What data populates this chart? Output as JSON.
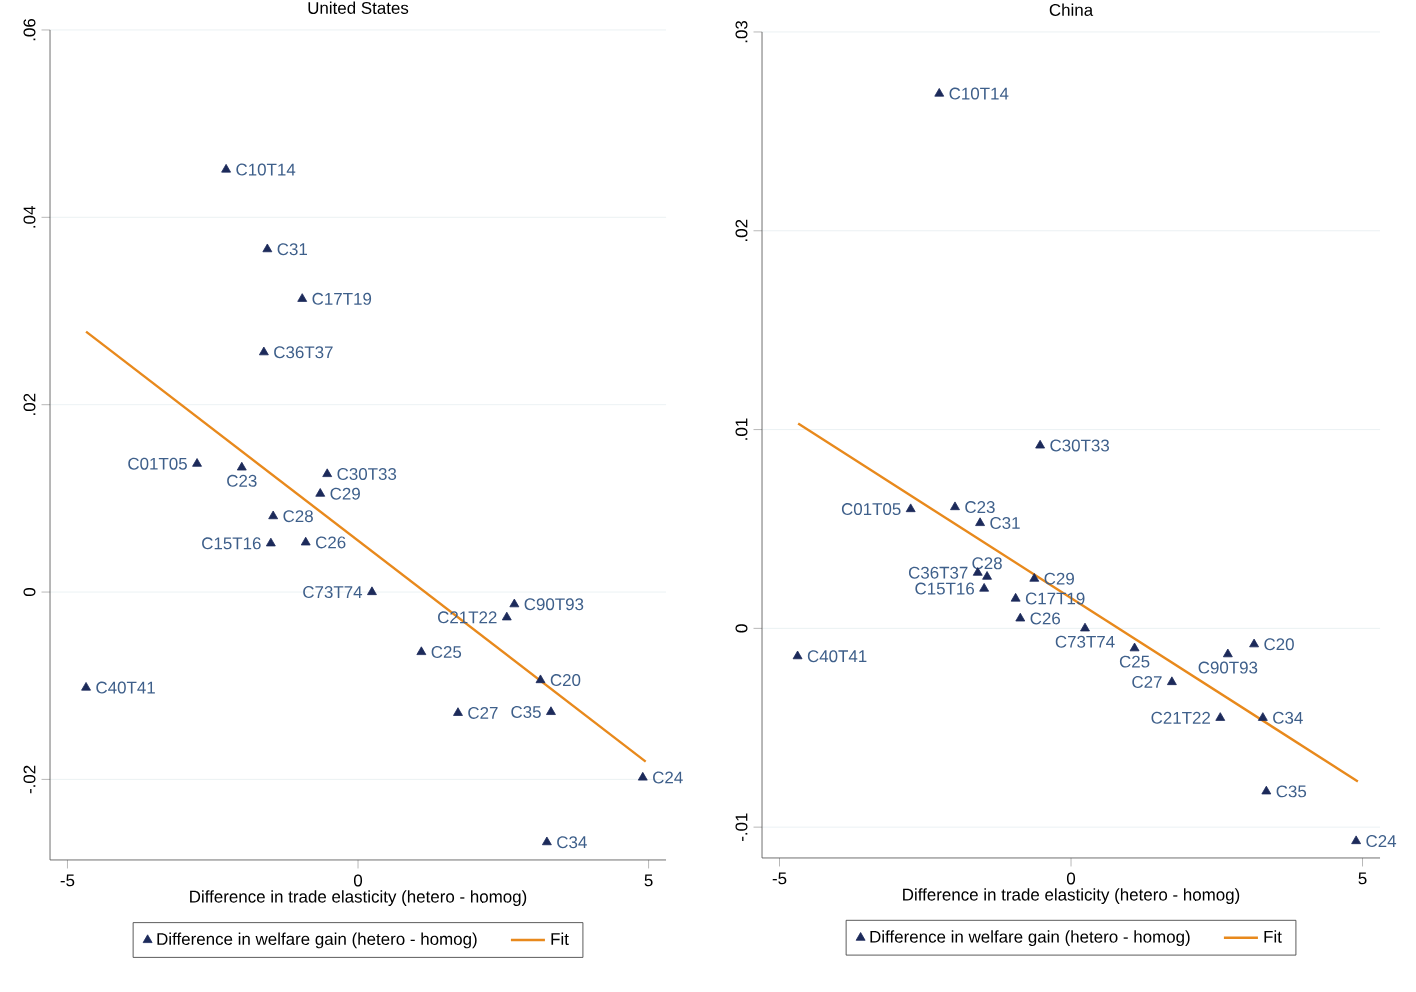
{
  "chart_data": [
    {
      "type": "scatter",
      "title": "United States",
      "xlabel": "Difference in trade elasticity (hetero - homog)",
      "xlim": [
        -5.3,
        5.3
      ],
      "xticks": [
        -5,
        0,
        5
      ],
      "ylim": [
        -0.0286,
        0.06
      ],
      "yticks": [
        {
          "value": -0.02,
          "label": "-.02"
        },
        0,
        {
          "value": 0.02,
          "label": ".02"
        },
        {
          "value": 0.04,
          "label": ".04"
        },
        {
          "value": 0.06,
          "label": ".06"
        }
      ],
      "grid": "y",
      "legend": "bottom",
      "series": [
        {
          "name": "Difference in welfare gain (hetero - homog)",
          "marker": "triangle",
          "color": "#1c2a5a",
          "x": [
            -2.27,
            -1.56,
            -0.96,
            -1.62,
            -2.77,
            -2.0,
            -0.53,
            -0.65,
            -1.46,
            -1.5,
            -0.9,
            0.24,
            2.69,
            2.56,
            1.09,
            3.14,
            1.72,
            3.32,
            4.9,
            3.25,
            -4.68
          ],
          "values": [
            0.0451,
            0.0366,
            0.0313,
            0.0256,
            0.0137,
            0.0133,
            0.0126,
            0.0105,
            0.0081,
            0.0052,
            0.0053,
            0.0,
            -0.0013,
            -0.0027,
            -0.0064,
            -0.0094,
            -0.0129,
            -0.0128,
            -0.0198,
            -0.0267,
            -0.0102
          ]
        },
        {
          "name": "Fit",
          "type": "line",
          "marker": "none",
          "color": "#e8891c",
          "x": [
            -4.68,
            4.95
          ],
          "values": [
            0.0278,
            -0.0181
          ]
        }
      ],
      "annotations": [
        {
          "text": "C10T14",
          "x": -2.27,
          "y": 0.0451
        },
        {
          "text": "C31",
          "x": -1.56,
          "y": 0.0366
        },
        {
          "text": "C17T19",
          "x": -0.96,
          "y": 0.0313
        },
        {
          "text": "C36T37",
          "x": -1.62,
          "y": 0.0256
        },
        {
          "text": "C01T05",
          "x": -2.77,
          "y": 0.0137
        },
        {
          "text": "C23",
          "x": -2.0,
          "y": 0.0133
        },
        {
          "text": "C30T33",
          "x": -0.53,
          "y": 0.0126
        },
        {
          "text": "C29",
          "x": -0.65,
          "y": 0.0105
        },
        {
          "text": "C28",
          "x": -1.46,
          "y": 0.0081
        },
        {
          "text": "C15T16",
          "x": -1.5,
          "y": 0.0052
        },
        {
          "text": "C26",
          "x": -0.9,
          "y": 0.0053
        },
        {
          "text": "C73T74",
          "x": 0.24,
          "y": 0.0
        },
        {
          "text": "C90T93",
          "x": 2.69,
          "y": -0.0013
        },
        {
          "text": "C21T22",
          "x": 2.56,
          "y": -0.0027
        },
        {
          "text": "C25",
          "x": 1.09,
          "y": -0.0064
        },
        {
          "text": "C20",
          "x": 3.14,
          "y": -0.0094
        },
        {
          "text": "C27",
          "x": 1.72,
          "y": -0.0129
        },
        {
          "text": "C35",
          "x": 3.32,
          "y": -0.0128
        },
        {
          "text": "C24",
          "x": 4.9,
          "y": -0.0198
        },
        {
          "text": "C34",
          "x": 3.25,
          "y": -0.0267
        },
        {
          "text": "C40T41",
          "x": -4.68,
          "y": -0.0102
        }
      ]
    },
    {
      "type": "scatter",
      "title": "China",
      "xlabel": "Difference in trade elasticity (hetero - homog)",
      "xlim": [
        -5.3,
        5.3
      ],
      "xticks": [
        -5,
        0,
        5
      ],
      "ylim": [
        -0.01155,
        0.03
      ],
      "yticks": [
        {
          "value": -0.01,
          "label": "-.01"
        },
        0,
        {
          "value": 0.01,
          "label": ".01"
        },
        {
          "value": 0.02,
          "label": ".02"
        },
        {
          "value": 0.03,
          "label": ".03"
        }
      ],
      "grid": "y",
      "legend": "bottom",
      "series": [
        {
          "name": "Difference in welfare gain (hetero - homog)",
          "marker": "triangle",
          "color": "#1c2a5a",
          "x": [
            -2.26,
            -0.53,
            -2.75,
            -1.99,
            -1.56,
            -1.6,
            -1.44,
            -0.63,
            -1.49,
            -0.95,
            -0.87,
            0.24,
            1.09,
            3.14,
            2.69,
            1.73,
            2.56,
            3.29,
            3.35,
            4.89,
            -4.69
          ],
          "values": [
            0.0269,
            0.0092,
            0.006,
            0.0061,
            0.0053,
            0.0028,
            0.0026,
            0.0025,
            0.002,
            0.0015,
            0.0005,
            0.0,
            -0.001,
            -0.0008,
            -0.0013,
            -0.0027,
            -0.0045,
            -0.0045,
            -0.0082,
            -0.0107,
            -0.0014
          ]
        },
        {
          "name": "Fit",
          "type": "line",
          "marker": "none",
          "color": "#e8891c",
          "x": [
            -4.68,
            4.92
          ],
          "values": [
            0.0103,
            -0.0077
          ]
        }
      ],
      "annotations": [
        {
          "text": "C10T14",
          "x": -2.26,
          "y": 0.0269
        },
        {
          "text": "C30T33",
          "x": -0.53,
          "y": 0.0092
        },
        {
          "text": "C01T05",
          "x": -2.75,
          "y": 0.006
        },
        {
          "text": "C23",
          "x": -1.99,
          "y": 0.0061
        },
        {
          "text": "C31",
          "x": -1.56,
          "y": 0.0053
        },
        {
          "text": "C36T37",
          "x": -1.6,
          "y": 0.0028
        },
        {
          "text": "C28",
          "x": -1.44,
          "y": 0.0026
        },
        {
          "text": "C29",
          "x": -0.63,
          "y": 0.0025
        },
        {
          "text": "C15T16",
          "x": -1.49,
          "y": 0.002
        },
        {
          "text": "C17T19",
          "x": -0.95,
          "y": 0.0015
        },
        {
          "text": "C26",
          "x": -0.87,
          "y": 0.0005
        },
        {
          "text": "C73T74",
          "x": 0.24,
          "y": 0.0
        },
        {
          "text": "C25",
          "x": 1.09,
          "y": -0.001
        },
        {
          "text": "C20",
          "x": 3.14,
          "y": -0.0008
        },
        {
          "text": "C90T93",
          "x": 2.69,
          "y": -0.0013
        },
        {
          "text": "C27",
          "x": 1.73,
          "y": -0.0027
        },
        {
          "text": "C21T22",
          "x": 2.56,
          "y": -0.0045
        },
        {
          "text": "C34",
          "x": 3.29,
          "y": -0.0045
        },
        {
          "text": "C35",
          "x": 3.35,
          "y": -0.0082
        },
        {
          "text": "C24",
          "x": 4.89,
          "y": -0.0107
        },
        {
          "text": "C40T41",
          "x": -4.69,
          "y": -0.0014
        }
      ]
    }
  ]
}
